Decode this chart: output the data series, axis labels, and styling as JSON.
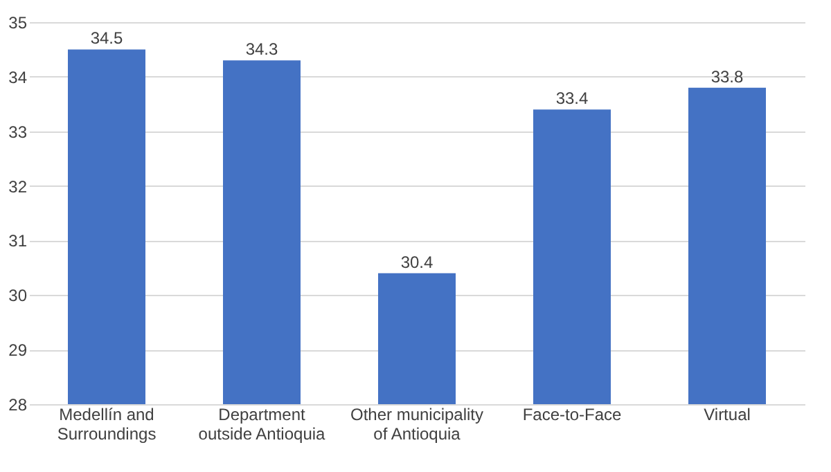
{
  "chart_data": {
    "type": "bar",
    "categories": [
      "Medellín and Surroundings",
      "Department outside Antioquia",
      "Other municipality of Antioquia",
      "Face-to-Face",
      "Virtual"
    ],
    "values": [
      34.5,
      34.3,
      30.4,
      33.4,
      33.8
    ],
    "color": "#4472c4",
    "ylim": [
      28,
      35
    ],
    "yticks": [
      28,
      29,
      30,
      31,
      32,
      33,
      34,
      35
    ],
    "grid": "y",
    "data_labels": true
  }
}
